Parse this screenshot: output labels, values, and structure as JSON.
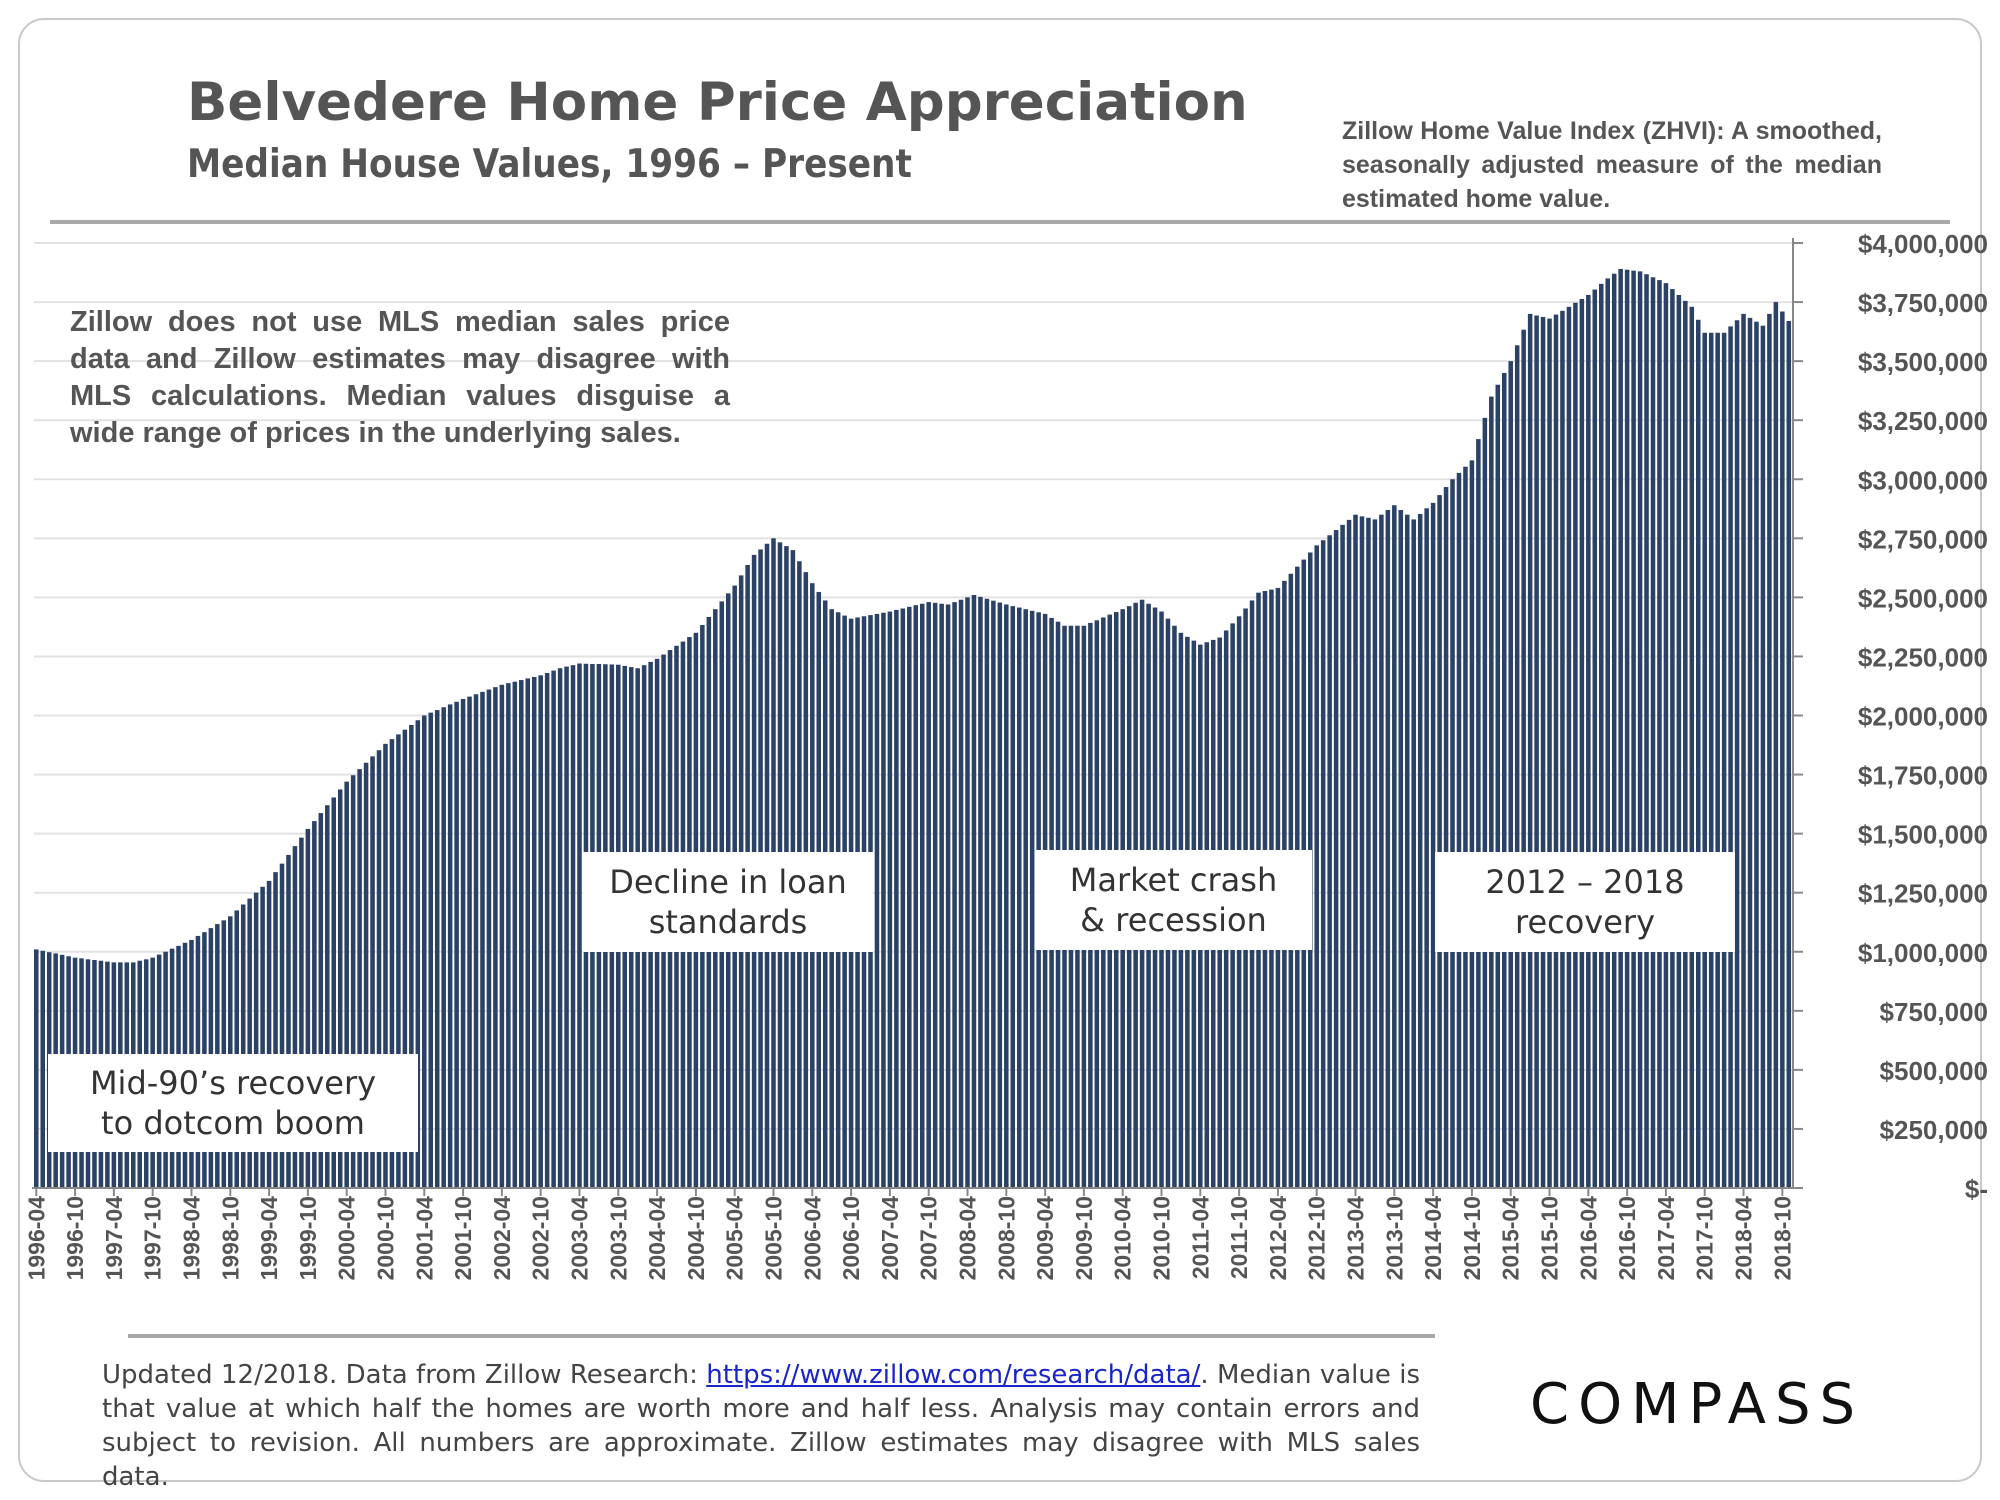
{
  "header": {
    "title": "Belvedere Home Price Appreciation",
    "subtitle": "Median House Values, 1996 – Present",
    "zhvi_note": "Zillow Home Value Index (ZHVI): A smoothed, seasonally adjusted measure of the median estimated home value."
  },
  "notes": {
    "mls_note": "Zillow does not use MLS median sales price data and Zillow estimates may disagree with MLS calculations. Median values disguise a wide range of prices in the underlying sales."
  },
  "annotations": {
    "mid90s_line1": "Mid-90’s recovery",
    "mid90s_line2": "to dotcom boom",
    "loan_line1": "Decline in loan",
    "loan_line2": "standards",
    "crash_line1": "Market crash",
    "crash_line2": "& recession",
    "recovery_line1": "2012 – 2018",
    "recovery_line2": "recovery"
  },
  "footer": {
    "text_before_link": "Updated 12/2018. Data from Zillow Research: ",
    "link_text": "https://www.zillow.com/research/data/",
    "text_after_link": ". Median value is that value at which half the homes are worth more and half less. Analysis may contain errors and subject to revision. All numbers are approximate. Zillow estimates may disagree with MLS sales data."
  },
  "branding": {
    "logo": "COMPASS"
  },
  "colors": {
    "bar": "#2b4266",
    "grid": "#e2e2e2",
    "axis": "#888888",
    "text": "#555555"
  },
  "chart_data": {
    "type": "bar",
    "title": "Belvedere Home Price Appreciation",
    "xlabel": "",
    "ylabel": "",
    "frequency": "monthly",
    "start_month": "1996-04",
    "end_month": "2018-11",
    "ylim": [
      0,
      4000000
    ],
    "y_ticks": [
      0,
      250000,
      500000,
      750000,
      1000000,
      1250000,
      1500000,
      1750000,
      2000000,
      2250000,
      2500000,
      2750000,
      3000000,
      3250000,
      3500000,
      3750000,
      4000000
    ],
    "y_tick_labels": [
      "$-",
      "$250,000",
      "$500,000",
      "$750,000",
      "$1,000,000",
      "$1,250,000",
      "$1,500,000",
      "$1,750,000",
      "$2,000,000",
      "$2,250,000",
      "$2,500,000",
      "$2,750,000",
      "$3,000,000",
      "$3,250,000",
      "$3,500,000",
      "$3,750,000",
      "$4,000,000"
    ],
    "x_tick_labels": [
      "1996-04",
      "1996-10",
      "1997-04",
      "1997-10",
      "1998-04",
      "1998-10",
      "1999-04",
      "1999-10",
      "2000-04",
      "2000-10",
      "2001-04",
      "2001-10",
      "2002-04",
      "2002-10",
      "2003-04",
      "2003-10",
      "2004-04",
      "2004-10",
      "2005-04",
      "2005-10",
      "2006-04",
      "2006-10",
      "2007-04",
      "2007-10",
      "2008-04",
      "2008-10",
      "2009-04",
      "2009-10",
      "2010-04",
      "2010-10",
      "2011-04",
      "2011-10",
      "2012-04",
      "2012-10",
      "2013-04",
      "2013-10",
      "2014-04",
      "2014-10",
      "2015-04",
      "2015-10",
      "2016-04",
      "2016-10",
      "2017-04",
      "2017-10",
      "2018-04",
      "2018-10"
    ],
    "anchors": [
      [
        "1996-04",
        1010000
      ],
      [
        "1996-10",
        975000
      ],
      [
        "1997-04",
        955000
      ],
      [
        "1997-07",
        955000
      ],
      [
        "1997-10",
        975000
      ],
      [
        "1998-04",
        1050000
      ],
      [
        "1998-10",
        1150000
      ],
      [
        "1999-04",
        1300000
      ],
      [
        "1999-10",
        1520000
      ],
      [
        "2000-04",
        1720000
      ],
      [
        "2000-10",
        1880000
      ],
      [
        "2001-04",
        2000000
      ],
      [
        "2001-10",
        2070000
      ],
      [
        "2002-04",
        2130000
      ],
      [
        "2002-10",
        2170000
      ],
      [
        "2003-01",
        2200000
      ],
      [
        "2003-04",
        2220000
      ],
      [
        "2003-10",
        2215000
      ],
      [
        "2004-01",
        2200000
      ],
      [
        "2004-04",
        2240000
      ],
      [
        "2004-10",
        2350000
      ],
      [
        "2005-04",
        2550000
      ],
      [
        "2005-07",
        2680000
      ],
      [
        "2005-10",
        2750000
      ],
      [
        "2006-01",
        2700000
      ],
      [
        "2006-04",
        2560000
      ],
      [
        "2006-07",
        2450000
      ],
      [
        "2006-10",
        2410000
      ],
      [
        "2007-04",
        2440000
      ],
      [
        "2007-10",
        2480000
      ],
      [
        "2008-01",
        2470000
      ],
      [
        "2008-05",
        2510000
      ],
      [
        "2008-10",
        2470000
      ],
      [
        "2009-04",
        2430000
      ],
      [
        "2009-07",
        2380000
      ],
      [
        "2009-10",
        2380000
      ],
      [
        "2010-04",
        2450000
      ],
      [
        "2010-07",
        2490000
      ],
      [
        "2010-10",
        2440000
      ],
      [
        "2011-01",
        2350000
      ],
      [
        "2011-04",
        2300000
      ],
      [
        "2011-07",
        2330000
      ],
      [
        "2011-10",
        2420000
      ],
      [
        "2012-01",
        2520000
      ],
      [
        "2012-04",
        2540000
      ],
      [
        "2012-10",
        2720000
      ],
      [
        "2013-04",
        2850000
      ],
      [
        "2013-07",
        2830000
      ],
      [
        "2013-10",
        2890000
      ],
      [
        "2014-01",
        2830000
      ],
      [
        "2014-04",
        2900000
      ],
      [
        "2014-07",
        3000000
      ],
      [
        "2014-10",
        3080000
      ],
      [
        "2015-01",
        3350000
      ],
      [
        "2015-04",
        3500000
      ],
      [
        "2015-07",
        3700000
      ],
      [
        "2015-10",
        3680000
      ],
      [
        "2016-01",
        3730000
      ],
      [
        "2016-04",
        3780000
      ],
      [
        "2016-07",
        3850000
      ],
      [
        "2016-09",
        3890000
      ],
      [
        "2016-12",
        3880000
      ],
      [
        "2017-04",
        3830000
      ],
      [
        "2017-08",
        3730000
      ],
      [
        "2017-10",
        3620000
      ],
      [
        "2018-01",
        3620000
      ],
      [
        "2018-04",
        3700000
      ],
      [
        "2018-07",
        3650000
      ],
      [
        "2018-09",
        3750000
      ],
      [
        "2018-11",
        3670000
      ]
    ]
  }
}
